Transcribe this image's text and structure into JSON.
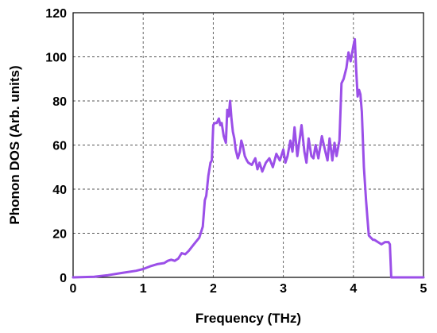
{
  "chart_data": {
    "type": "line",
    "title": "",
    "xlabel": "Frequency (THz)",
    "ylabel": "Phonon DOS (Arb. units)",
    "xlim": [
      0,
      5
    ],
    "ylim": [
      0,
      120
    ],
    "xticks": [
      0,
      1,
      2,
      3,
      4,
      5
    ],
    "yticks": [
      0,
      20,
      40,
      60,
      80,
      100,
      120
    ],
    "grid": true,
    "legend": "none",
    "series": [
      {
        "color": "#9b4fe8",
        "x": [
          0,
          0.3,
          0.5,
          0.7,
          0.9,
          1.0,
          1.1,
          1.2,
          1.3,
          1.35,
          1.4,
          1.45,
          1.5,
          1.55,
          1.6,
          1.65,
          1.7,
          1.75,
          1.8,
          1.85,
          1.88,
          1.9,
          1.93,
          1.96,
          1.98,
          2.0,
          2.02,
          2.05,
          2.08,
          2.1,
          2.12,
          2.15,
          2.18,
          2.2,
          2.22,
          2.24,
          2.26,
          2.28,
          2.3,
          2.32,
          2.35,
          2.38,
          2.4,
          2.42,
          2.45,
          2.48,
          2.5,
          2.55,
          2.6,
          2.63,
          2.66,
          2.7,
          2.75,
          2.8,
          2.85,
          2.9,
          2.95,
          3.0,
          3.03,
          3.06,
          3.1,
          3.13,
          3.16,
          3.2,
          3.23,
          3.26,
          3.3,
          3.33,
          3.36,
          3.4,
          3.43,
          3.46,
          3.5,
          3.55,
          3.6,
          3.63,
          3.66,
          3.7,
          3.73,
          3.76,
          3.8,
          3.83,
          3.86,
          3.9,
          3.93,
          3.96,
          4.0,
          4.02,
          4.04,
          4.06,
          4.08,
          4.1,
          4.12,
          4.15,
          4.18,
          4.2,
          4.22,
          4.25,
          4.28,
          4.3,
          4.35,
          4.4,
          4.45,
          4.5,
          4.52,
          4.53,
          4.54,
          4.6,
          4.8,
          5.0
        ],
        "y": [
          0,
          0.3,
          1,
          2,
          3,
          3.8,
          5,
          6,
          6.5,
          7.5,
          8,
          7.5,
          8.5,
          11,
          10.5,
          12,
          14,
          16,
          18,
          23,
          35,
          37,
          46,
          52,
          53,
          69,
          70,
          70,
          72,
          69,
          70,
          64,
          61,
          76,
          73,
          80,
          72,
          66,
          63,
          58,
          54,
          57,
          62,
          60,
          55,
          53,
          52,
          51,
          54,
          49,
          52,
          48,
          52,
          54,
          50,
          56,
          53,
          58,
          52,
          55,
          62,
          57,
          68,
          55,
          62,
          69,
          57,
          52,
          63,
          55,
          54,
          60,
          54,
          64,
          57,
          53,
          63,
          53,
          61,
          55,
          62,
          88,
          90,
          95,
          102,
          98,
          105,
          108,
          94,
          82,
          85,
          83,
          75,
          50,
          35,
          27,
          19,
          18,
          17,
          17,
          16,
          15,
          16,
          16,
          15,
          8,
          0,
          0,
          0,
          0
        ]
      }
    ]
  }
}
